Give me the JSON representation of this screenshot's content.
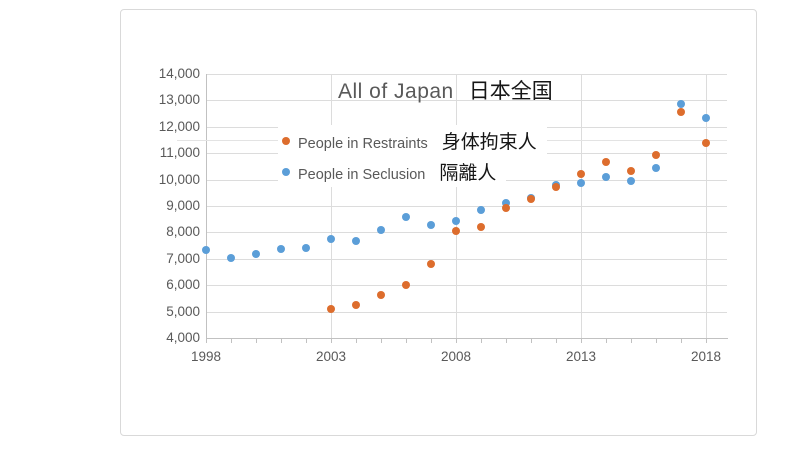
{
  "chart": {
    "title_en": "All of Japan",
    "title_ja": "日本全国",
    "legend": {
      "restraints": {
        "label_en": "People in Restraints",
        "label_ja": "身体拘束人",
        "color": "#dd6d2d"
      },
      "seclusion": {
        "label_en": "People in Seclusion",
        "label_ja": "隔離人",
        "color": "#5b9ed8"
      }
    },
    "y_tick_labels": [
      "14,000",
      "13,000",
      "12,000",
      "11,000",
      "10,000",
      "9,000",
      "8,000",
      "7,000",
      "6,000",
      "5,000",
      "4,000"
    ],
    "x_tick_labels": [
      "1998",
      "2003",
      "2008",
      "2013",
      "2018"
    ]
  },
  "chart_data": {
    "type": "scatter",
    "title": "All of Japan 日本全国",
    "xlabel": "",
    "ylabel": "",
    "xlim": [
      1998,
      2019
    ],
    "ylim": [
      4000,
      14000
    ],
    "xticks": [
      1998,
      2003,
      2008,
      2013,
      2018
    ],
    "yticks": [
      4000,
      5000,
      6000,
      7000,
      8000,
      9000,
      10000,
      11000,
      12000,
      13000,
      14000
    ],
    "grid": true,
    "legend_position": "inside-top-left",
    "series": [
      {
        "name": "People in Seclusion 隔離人",
        "color": "#5b9ed8",
        "points": [
          [
            1998,
            7350
          ],
          [
            1999,
            7020
          ],
          [
            2000,
            7200
          ],
          [
            2001,
            7370
          ],
          [
            2002,
            7400
          ],
          [
            2003,
            7741
          ],
          [
            2004,
            7673
          ],
          [
            2005,
            8097
          ],
          [
            2006,
            8567
          ],
          [
            2007,
            8264
          ],
          [
            2008,
            8433
          ],
          [
            2009,
            8836
          ],
          [
            2010,
            9132
          ],
          [
            2011,
            9300
          ],
          [
            2012,
            9800
          ],
          [
            2013,
            9883
          ],
          [
            2014,
            10094
          ],
          [
            2015,
            9950
          ],
          [
            2016,
            10424
          ],
          [
            2017,
            12850
          ],
          [
            2018,
            12350
          ]
        ]
      },
      {
        "name": "People in Restraints 身体拘束人",
        "color": "#dd6d2d",
        "points": [
          [
            2003,
            5109
          ],
          [
            2004,
            5242
          ],
          [
            2005,
            5623
          ],
          [
            2006,
            6015
          ],
          [
            2007,
            6786
          ],
          [
            2008,
            8057
          ],
          [
            2009,
            8193
          ],
          [
            2010,
            8930
          ],
          [
            2011,
            9254
          ],
          [
            2012,
            9730
          ],
          [
            2013,
            10229
          ],
          [
            2014,
            10682
          ],
          [
            2015,
            10330
          ],
          [
            2016,
            10933
          ],
          [
            2017,
            12550
          ],
          [
            2018,
            11400
          ]
        ]
      }
    ]
  }
}
